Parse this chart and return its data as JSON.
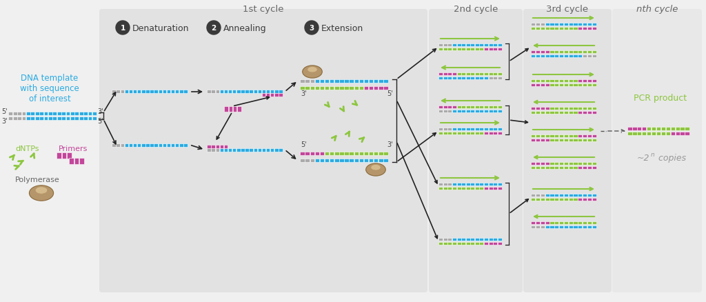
{
  "bg_outer": "#f0f0f0",
  "bg_panel": "#e4e4e4",
  "bg_nth": "#ebebeb",
  "cyan": "#2AABE2",
  "gray_dna": "#aaaaaa",
  "green": "#8DC63F",
  "magenta": "#C2469A",
  "brown_poly": "#b5956a",
  "brown_poly_light": "#d4b98a",
  "brown_poly_dark": "#8a6a3a",
  "white": "#ffffff",
  "black": "#222222",
  "title_gray": "#666666",
  "step_circle": "#3a3a3a",
  "cyan_text": "#2AABE2",
  "green_text": "#8DC63F",
  "gray_text": "#999999",
  "title_1st": "1st cycle",
  "title_2nd": "2nd cycle",
  "title_3rd": "3rd cycle",
  "title_nth": "nth cycle",
  "label1": "Denaturation",
  "label2": "Annealing",
  "label3": "Extension",
  "dna_label": "DNA template\nwith sequence\nof interest",
  "dntp_label": "dNTPs",
  "primers_label": "Primers",
  "poly_label": "Polymerase",
  "pcr_label": "PCR product",
  "copies_label": "~2"
}
